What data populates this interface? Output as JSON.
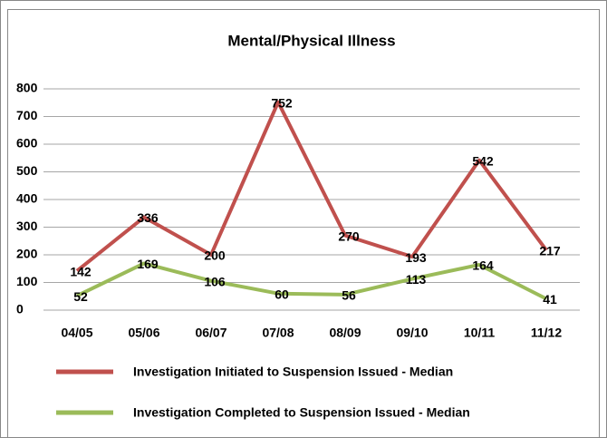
{
  "chart_data": {
    "type": "line",
    "title": "Mental/Physical Illness",
    "categories": [
      "04/05",
      "05/06",
      "06/07",
      "07/08",
      "08/09",
      "09/10",
      "10/11",
      "11/12"
    ],
    "series": [
      {
        "name": "Investigation Initiated to Suspension Issued - Median",
        "color": "#c0504d",
        "values": [
          142,
          336,
          200,
          752,
          270,
          193,
          542,
          217
        ]
      },
      {
        "name": "Investigation Completed to Suspension Issued - Median",
        "color": "#9bbb59",
        "values": [
          52,
          169,
          106,
          60,
          56,
          113,
          164,
          41
        ]
      }
    ],
    "ylim": [
      0,
      800
    ],
    "yticks": [
      0,
      100,
      200,
      300,
      400,
      500,
      600,
      700,
      800
    ],
    "grid": true,
    "legend": "bottom"
  }
}
